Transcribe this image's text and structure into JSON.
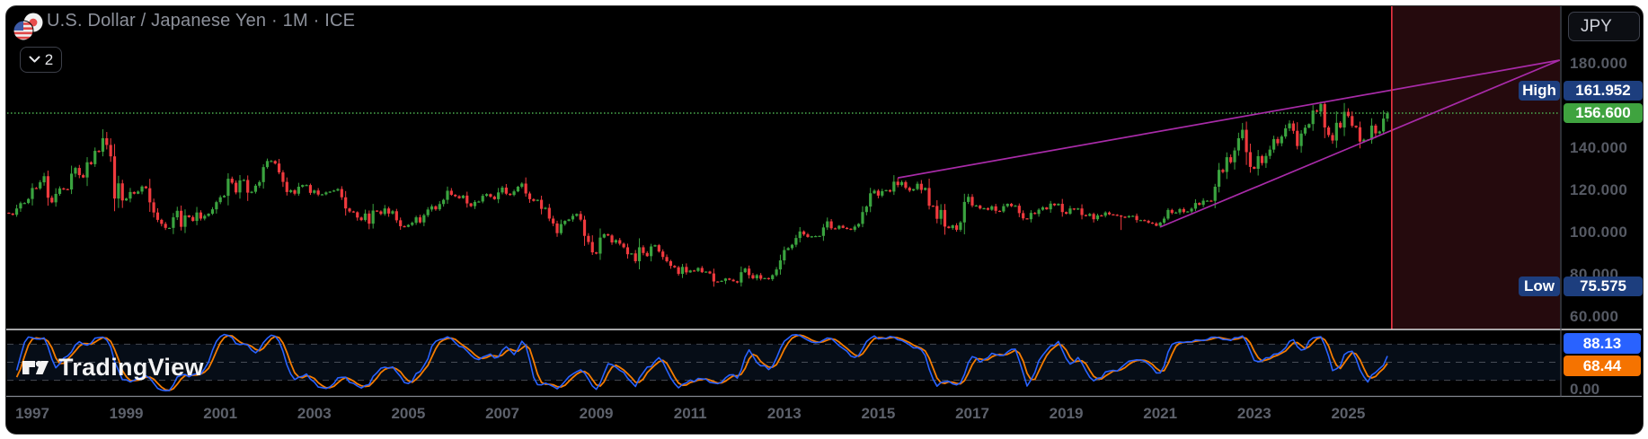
{
  "header": {
    "symbol_title": "U.S. Dollar / Japanese Yen",
    "separator": "·",
    "interval": "1M",
    "exchange": "ICE",
    "collapse_count": "2",
    "flag_icons": [
      "us-flag-icon",
      "japan-flag-icon"
    ]
  },
  "price_axis": {
    "currency_button": "JPY",
    "ticks": [
      {
        "label": "180.000",
        "price": 180
      },
      {
        "label": "140.000",
        "price": 140
      },
      {
        "label": "120.000",
        "price": 120
      },
      {
        "label": "100.000",
        "price": 100
      },
      {
        "label": "80.000",
        "price": 80
      },
      {
        "label": "60.000",
        "price": 60
      }
    ],
    "high_label": "High",
    "high_value": "161.952",
    "last_value": "156.600",
    "low_label": "Low",
    "low_value": "75.575"
  },
  "time_axis": {
    "years": [
      "1997",
      "1999",
      "2001",
      "2003",
      "2005",
      "2007",
      "2009",
      "2011",
      "2013",
      "2015",
      "2017",
      "2019",
      "2021",
      "2023",
      "2025"
    ]
  },
  "indicator": {
    "name": "stochastic",
    "k_value": "88.13",
    "d_value": "68.44",
    "bottom_label": "0.00",
    "levels": [
      80,
      50,
      20
    ]
  },
  "watermark": {
    "text": "TradingView"
  },
  "colors": {
    "up": "#3aa33f",
    "down": "#ef3a3e",
    "trendline": "#a82ba8",
    "vline": "#f23645",
    "future_zone": "#250a0d",
    "price_line": "#4caf50",
    "k_line": "#2962ff",
    "d_line": "#f57c00",
    "band": "rgba(52,110,190,0.12)",
    "level_dash": "#7d808a",
    "badge_navy": "#1d3e7e",
    "badge_green": "#3fa33f",
    "badge_blue": "#2962ff",
    "badge_orange": "#f57300"
  },
  "chart_data": {
    "type": "candlestick",
    "symbol": "USDJPY",
    "title": "U.S. Dollar / Japanese Yen · 1M · ICE",
    "timeframe": "1M",
    "visible_price_range": [
      54,
      207
    ],
    "visible_time_range": [
      "1996-07",
      "2029-07"
    ],
    "high": 161.952,
    "low": 75.575,
    "last": 156.6,
    "price_line": 156.6,
    "vertical_line_time": "2025-12",
    "highlight_zone_from": "2025-12",
    "start": "1996-07",
    "monthly_closes": {
      "1996": [
        109.0,
        108.4,
        111.4,
        113.9,
        114.0,
        115.9
      ],
      "1997": [
        121.1,
        120.9,
        123.8,
        126.7,
        116.5,
        114.3,
        118.3,
        120.9,
        120.6,
        120.4,
        127.9,
        130.6
      ],
      "1998": [
        127.2,
        126.1,
        133.3,
        132.4,
        138.7,
        138.3,
        144.7,
        141.5,
        136.1,
        116.1,
        123.3,
        115.2
      ],
      "1999": [
        116.1,
        119.2,
        118.4,
        119.4,
        121.8,
        121.0,
        114.3,
        109.5,
        106.0,
        104.1,
        102.2,
        102.2
      ],
      "2000": [
        107.2,
        110.3,
        102.7,
        108.1,
        107.3,
        105.5,
        109.5,
        106.6,
        107.9,
        108.9,
        111.0,
        114.4
      ],
      "2001": [
        116.7,
        117.4,
        125.5,
        123.6,
        119.0,
        124.7,
        124.9,
        118.9,
        119.3,
        122.2,
        123.9,
        131.0
      ],
      "2002": [
        133.9,
        133.9,
        132.7,
        128.5,
        124.0,
        119.2,
        120.0,
        118.4,
        121.7,
        122.5,
        122.5,
        118.8
      ],
      "2003": [
        119.9,
        118.0,
        118.1,
        119.0,
        119.4,
        119.9,
        120.6,
        116.7,
        111.4,
        110.0,
        109.6,
        107.1
      ],
      "2004": [
        105.9,
        109.0,
        104.2,
        110.4,
        110.0,
        108.8,
        111.4,
        109.0,
        110.1,
        105.8,
        103.0,
        102.7
      ],
      "2005": [
        103.6,
        104.6,
        107.2,
        104.8,
        108.2,
        110.9,
        112.4,
        111.0,
        113.5,
        115.5,
        119.8,
        117.9
      ],
      "2006": [
        117.2,
        116.3,
        117.5,
        113.8,
        112.5,
        114.5,
        114.7,
        117.4,
        118.2,
        117.0,
        115.8,
        119.0
      ],
      "2007": [
        121.3,
        118.4,
        117.8,
        119.5,
        121.7,
        123.2,
        118.5,
        115.8,
        115.0,
        115.5,
        111.2,
        111.7
      ],
      "2008": [
        106.6,
        104.3,
        99.7,
        104.0,
        105.5,
        106.2,
        107.9,
        108.8,
        106.1,
        98.4,
        95.5,
        90.6
      ],
      "2009": [
        90.0,
        97.6,
        99.2,
        98.6,
        95.3,
        96.4,
        94.7,
        93.0,
        89.7,
        90.1,
        86.4,
        93.0
      ],
      "2010": [
        90.3,
        88.8,
        93.4,
        94.0,
        91.0,
        88.4,
        86.4,
        84.2,
        83.5,
        80.4,
        83.7,
        81.1
      ],
      "2011": [
        82.0,
        81.8,
        83.2,
        81.2,
        81.5,
        80.6,
        76.8,
        76.7,
        77.1,
        78.2,
        77.6,
        76.9
      ],
      "2012": [
        76.3,
        81.2,
        82.9,
        79.8,
        78.3,
        79.8,
        78.1,
        78.4,
        77.9,
        79.8,
        82.5,
        86.8
      ],
      "2013": [
        91.7,
        92.6,
        94.2,
        97.4,
        100.5,
        99.1,
        97.9,
        98.2,
        98.3,
        98.4,
        102.4,
        105.3
      ],
      "2014": [
        102.0,
        101.8,
        103.2,
        102.2,
        101.8,
        101.3,
        102.8,
        104.1,
        109.7,
        112.3,
        118.6,
        119.8
      ],
      "2015": [
        117.5,
        119.6,
        120.1,
        119.4,
        124.1,
        122.5,
        123.9,
        121.2,
        119.9,
        120.6,
        123.1,
        120.2
      ],
      "2016": [
        121.1,
        112.7,
        112.6,
        106.5,
        110.7,
        102.8,
        102.1,
        103.4,
        101.3,
        104.8,
        114.5,
        116.9
      ],
      "2017": [
        112.8,
        112.8,
        111.4,
        111.5,
        110.8,
        112.4,
        110.3,
        110.0,
        112.5,
        113.6,
        112.5,
        112.7
      ],
      "2018": [
        109.2,
        106.7,
        106.3,
        109.3,
        108.8,
        110.8,
        111.9,
        111.0,
        113.7,
        112.9,
        113.6,
        109.7
      ],
      "2019": [
        108.9,
        111.4,
        110.9,
        111.4,
        108.3,
        107.9,
        108.8,
        106.3,
        108.1,
        108.0,
        109.5,
        108.6
      ],
      "2020": [
        108.4,
        108.1,
        107.5,
        107.2,
        107.8,
        107.9,
        105.9,
        105.9,
        105.5,
        104.7,
        104.3,
        103.2
      ],
      "2021": [
        104.7,
        106.6,
        110.7,
        109.3,
        109.5,
        111.1,
        109.7,
        110.0,
        111.3,
        114.0,
        113.1,
        115.1
      ],
      "2022": [
        115.1,
        115.0,
        121.7,
        129.7,
        128.7,
        135.7,
        133.3,
        138.9,
        144.7,
        148.7,
        138.1,
        131.1
      ],
      "2023": [
        130.2,
        136.2,
        132.9,
        136.3,
        139.3,
        144.3,
        142.3,
        145.5,
        149.4,
        151.7,
        148.2,
        141.0
      ],
      "2024": [
        146.9,
        149.7,
        151.4,
        157.8,
        157.3,
        160.9,
        149.8,
        146.2,
        143.6,
        152.0,
        149.8,
        157.2
      ],
      "2025": [
        155.2,
        150.6,
        149.9,
        143.1,
        144.0,
        144.0,
        150.7,
        147.0,
        147.9,
        154.0,
        156.6
      ]
    },
    "wick_extremes": {
      "1998-08": {
        "high": 147.65
      },
      "1999-11": {
        "low": 101.2
      },
      "2011-10": {
        "low": 75.575
      },
      "2015-06": {
        "high": 125.86
      },
      "2020-03": {
        "low": 101.2
      },
      "2022-10": {
        "high": 151.94
      },
      "2024-07": {
        "high": 161.952
      },
      "2025-01": {
        "high": 158.88
      },
      "2025-04": {
        "low": 139.89
      },
      "2025-11": {
        "high": 157.5
      }
    },
    "trendlines": [
      {
        "name": "upper-trendline",
        "from": {
          "time": "2015-06",
          "price": 125.9
        },
        "to": {
          "time": "2029-07",
          "price": 181.7
        }
      },
      {
        "name": "lower-trendline",
        "from": {
          "time": "2021-01",
          "price": 102.6
        },
        "to": {
          "time": "2029-07",
          "price": 181.7
        }
      }
    ],
    "lower_pane": {
      "type": "line",
      "series": [
        {
          "name": "%K",
          "color": "#2962ff",
          "last": 88.13
        },
        {
          "name": "%D",
          "color": "#f57c00",
          "last": 68.44
        }
      ],
      "levels": [
        80,
        50,
        20
      ],
      "range": [
        0,
        100
      ]
    }
  }
}
